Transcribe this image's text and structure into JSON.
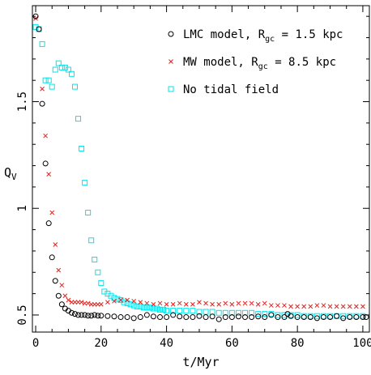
{
  "chart_data": {
    "type": "scatter",
    "title": "",
    "xlabel": "t/Myr",
    "ylabel": "Q",
    "ylabel_sub": "V",
    "xlim": [
      -1,
      102
    ],
    "ylim": [
      0.42,
      1.95
    ],
    "xticks": [
      0,
      20,
      40,
      60,
      80,
      100
    ],
    "yticks": [
      0.5,
      1,
      1.5
    ],
    "xtick_labels": [
      "0",
      "20",
      "40",
      "60",
      "80",
      "100"
    ],
    "ytick_labels": [
      "0.5",
      "1",
      "1.5"
    ],
    "legend_position": "top-right",
    "grid": false,
    "series": [
      {
        "name": "LMC model, R",
        "name_sub": "gc",
        "name_suffix": " = 1.5 kpc",
        "marker": "circle",
        "color": "#000000",
        "x": [
          0,
          1,
          2,
          3,
          4,
          5,
          6,
          7,
          8,
          9,
          10,
          11,
          12,
          13,
          14,
          15,
          16,
          17,
          18,
          19,
          20,
          22,
          24,
          26,
          28,
          30,
          32,
          34,
          36,
          38,
          40,
          42,
          44,
          46,
          48,
          50,
          52,
          54,
          56,
          58,
          60,
          62,
          64,
          66,
          68,
          70,
          72,
          74,
          76,
          77,
          78,
          80,
          82,
          84,
          86,
          88,
          90,
          92,
          94,
          96,
          98,
          100,
          101
        ],
        "y": [
          1.9,
          1.84,
          1.49,
          1.21,
          0.93,
          0.77,
          0.66,
          0.59,
          0.55,
          0.53,
          0.52,
          0.51,
          0.505,
          0.5,
          0.5,
          0.5,
          0.497,
          0.497,
          0.5,
          0.497,
          0.497,
          0.495,
          0.493,
          0.49,
          0.49,
          0.485,
          0.49,
          0.5,
          0.493,
          0.49,
          0.49,
          0.5,
          0.493,
          0.49,
          0.49,
          0.495,
          0.49,
          0.493,
          0.48,
          0.49,
          0.49,
          0.493,
          0.49,
          0.49,
          0.493,
          0.49,
          0.5,
          0.49,
          0.49,
          0.505,
          0.495,
          0.49,
          0.49,
          0.49,
          0.485,
          0.49,
          0.49,
          0.495,
          0.485,
          0.49,
          0.49,
          0.49,
          0.49
        ]
      },
      {
        "name": "MW model, R",
        "name_sub": "gc",
        "name_suffix": " = 8.5 kpc",
        "marker": "x",
        "color": "#e8201c",
        "x": [
          0,
          2,
          3,
          4,
          5,
          6,
          7,
          8,
          9,
          10,
          11,
          12,
          13,
          14,
          15,
          16,
          17,
          18,
          19,
          20,
          22,
          24,
          26,
          28,
          30,
          32,
          34,
          36,
          38,
          40,
          42,
          44,
          46,
          48,
          50,
          52,
          54,
          56,
          58,
          60,
          62,
          64,
          66,
          68,
          70,
          72,
          74,
          76,
          78,
          80,
          82,
          84,
          86,
          88,
          90,
          92,
          94,
          96,
          98,
          100
        ],
        "y": [
          1.89,
          1.56,
          1.34,
          1.16,
          0.98,
          0.83,
          0.71,
          0.64,
          0.59,
          0.57,
          0.56,
          0.56,
          0.56,
          0.56,
          0.555,
          0.555,
          0.55,
          0.55,
          0.55,
          0.55,
          0.56,
          0.565,
          0.57,
          0.57,
          0.565,
          0.56,
          0.555,
          0.55,
          0.555,
          0.55,
          0.55,
          0.555,
          0.55,
          0.55,
          0.56,
          0.555,
          0.55,
          0.55,
          0.555,
          0.55,
          0.555,
          0.555,
          0.555,
          0.55,
          0.555,
          0.545,
          0.545,
          0.545,
          0.54,
          0.54,
          0.54,
          0.54,
          0.545,
          0.545,
          0.54,
          0.54,
          0.54,
          0.54,
          0.54,
          0.54
        ]
      },
      {
        "name": "No tidal field",
        "marker": "square",
        "color": "#00e5ee",
        "x": [
          0,
          1,
          2,
          3,
          4,
          5,
          6,
          7,
          8,
          9,
          10,
          11,
          12,
          13,
          14,
          15,
          16,
          17,
          18,
          19,
          20,
          21,
          22,
          23,
          24,
          25,
          26,
          27,
          28,
          29,
          30,
          31,
          32,
          33,
          34,
          35,
          36,
          37,
          38,
          39,
          40,
          42,
          44,
          46,
          48,
          50,
          52,
          54,
          56,
          58,
          60,
          62,
          64,
          66,
          68,
          70,
          72,
          74,
          76,
          78,
          80,
          82,
          84,
          86,
          88,
          90,
          92,
          94,
          96,
          98,
          100
        ],
        "y": [
          1.85,
          1.84,
          1.77,
          1.6,
          1.6,
          1.57,
          1.65,
          1.68,
          1.66,
          1.66,
          1.65,
          1.63,
          1.57,
          1.42,
          1.28,
          1.12,
          0.98,
          0.85,
          0.76,
          0.7,
          0.65,
          0.61,
          0.6,
          0.59,
          0.58,
          0.575,
          0.57,
          0.56,
          0.555,
          0.55,
          0.545,
          0.54,
          0.54,
          0.535,
          0.535,
          0.535,
          0.53,
          0.53,
          0.525,
          0.525,
          0.52,
          0.52,
          0.52,
          0.52,
          0.52,
          0.515,
          0.515,
          0.515,
          0.51,
          0.51,
          0.51,
          0.51,
          0.51,
          0.51,
          0.505,
          0.505,
          0.505,
          0.5,
          0.5,
          0.5,
          0.5,
          0.495,
          0.495,
          0.495,
          0.495,
          0.495,
          0.495,
          0.495,
          0.495,
          0.495,
          0.495
        ]
      }
    ]
  }
}
